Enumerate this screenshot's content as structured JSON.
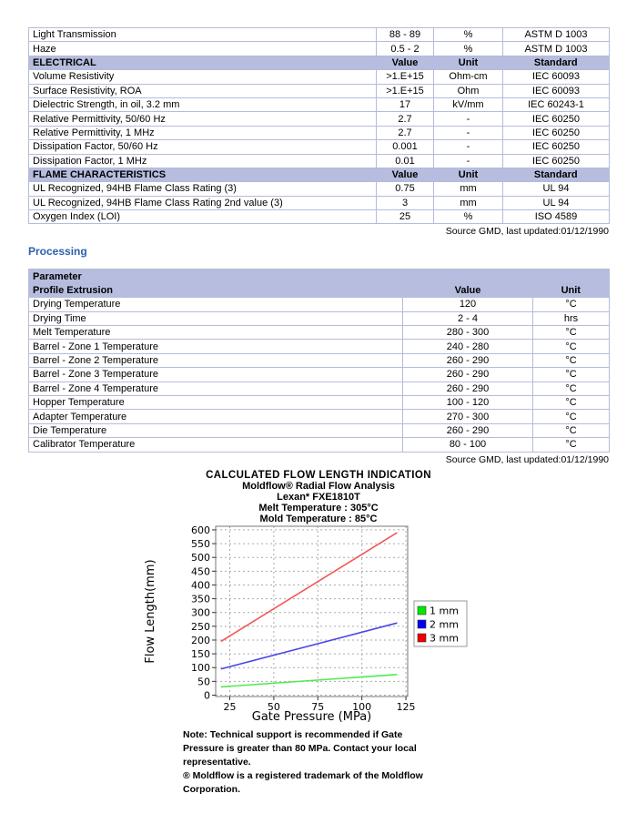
{
  "colors": {
    "table_header_bg": "#b6bdde",
    "table_border": "#b3bcdb",
    "processing_heading": "#2d5fae",
    "grid": "#aaaaaa",
    "plot_frame": "#777777"
  },
  "properties_table": {
    "rows": [
      {
        "type": "data",
        "property": "Light Transmission",
        "value": "88 - 89",
        "unit": "%",
        "standard": "ASTM D 1003"
      },
      {
        "type": "data",
        "property": "Haze",
        "value": "0.5 - 2",
        "unit": "%",
        "standard": "ASTM D 1003"
      },
      {
        "type": "section",
        "property": "ELECTRICAL",
        "value": "Value",
        "unit": "Unit",
        "standard": "Standard"
      },
      {
        "type": "data",
        "property": "Volume Resistivity",
        "value": ">1.E+15",
        "unit": "Ohm-cm",
        "standard": "IEC 60093"
      },
      {
        "type": "data",
        "property": "Surface Resistivity, ROA",
        "value": ">1.E+15",
        "unit": "Ohm",
        "standard": "IEC 60093"
      },
      {
        "type": "data",
        "property": "Dielectric Strength, in oil, 3.2 mm",
        "value": "17",
        "unit": "kV/mm",
        "standard": "IEC 60243-1"
      },
      {
        "type": "data",
        "property": "Relative Permittivity, 50/60 Hz",
        "value": "2.7",
        "unit": "-",
        "standard": "IEC 60250"
      },
      {
        "type": "data",
        "property": "Relative Permittivity, 1 MHz",
        "value": "2.7",
        "unit": "-",
        "standard": "IEC 60250"
      },
      {
        "type": "data",
        "property": "Dissipation Factor, 50/60 Hz",
        "value": "0.001",
        "unit": "-",
        "standard": "IEC 60250"
      },
      {
        "type": "data",
        "property": "Dissipation Factor, 1 MHz",
        "value": "0.01",
        "unit": "-",
        "standard": "IEC 60250"
      },
      {
        "type": "section",
        "property": "FLAME CHARACTERISTICS",
        "value": "Value",
        "unit": "Unit",
        "standard": "Standard"
      },
      {
        "type": "data",
        "property": "UL Recognized, 94HB Flame Class Rating (3)",
        "value": "0.75",
        "unit": "mm",
        "standard": "UL 94"
      },
      {
        "type": "data",
        "property": "UL Recognized, 94HB Flame Class Rating 2nd value (3)",
        "value": "3",
        "unit": "mm",
        "standard": "UL 94"
      },
      {
        "type": "data",
        "property": "Oxygen Index (LOI)",
        "value": "25",
        "unit": "%",
        "standard": "ISO 4589"
      }
    ],
    "source": "Source GMD, last updated:01/12/1990"
  },
  "processing": {
    "heading": "Processing",
    "table": {
      "group_header": "Parameter",
      "sub_header": {
        "parameter": "Profile Extrusion",
        "value": "Value",
        "unit": "Unit"
      },
      "rows": [
        {
          "parameter": "Drying Temperature",
          "value": "120",
          "unit": "°C"
        },
        {
          "parameter": "Drying Time",
          "value": "2 - 4",
          "unit": "hrs"
        },
        {
          "parameter": "Melt Temperature",
          "value": "280 - 300",
          "unit": "°C"
        },
        {
          "parameter": "Barrel - Zone 1 Temperature",
          "value": "240 - 280",
          "unit": "°C"
        },
        {
          "parameter": "Barrel - Zone 2 Temperature",
          "value": "260 - 290",
          "unit": "°C"
        },
        {
          "parameter": "Barrel - Zone 3 Temperature",
          "value": "260 - 290",
          "unit": "°C"
        },
        {
          "parameter": "Barrel - Zone 4 Temperature",
          "value": "260 - 290",
          "unit": "°C"
        },
        {
          "parameter": "Hopper Temperature",
          "value": "100 - 120",
          "unit": "°C"
        },
        {
          "parameter": "Adapter Temperature",
          "value": "270 - 300",
          "unit": "°C"
        },
        {
          "parameter": "Die Temperature",
          "value": "260 - 290",
          "unit": "°C"
        },
        {
          "parameter": "Calibrator Temperature",
          "value": "80 - 100",
          "unit": "°C"
        }
      ],
      "source": "Source GMD, last updated:01/12/1990"
    }
  },
  "chart_data": {
    "type": "line",
    "title": "CALCULATED FLOW LENGTH INDICATION",
    "subtitles": [
      "Moldflow® Radial Flow Analysis",
      "Lexan* FXE1810T",
      "Melt Temperature : 305°C",
      "Mold Temperature : 85°C"
    ],
    "xlabel": "Gate Pressure (MPa)",
    "ylabel": "Flow Length(mm)",
    "xlim": [
      17,
      126
    ],
    "ylim": [
      -5,
      613
    ],
    "x_ticks": [
      25,
      50,
      75,
      100,
      125
    ],
    "y_ticks": [
      0,
      50,
      100,
      150,
      200,
      250,
      300,
      350,
      400,
      450,
      500,
      550,
      600
    ],
    "grid": "dashed",
    "legend_position": "right",
    "series": [
      {
        "name": "1 mm",
        "line_color": "#4dec4d",
        "legend_color": "#00e800",
        "x": [
          20,
          120
        ],
        "y": [
          30,
          75
        ]
      },
      {
        "name": "2 mm",
        "line_color": "#4646e8",
        "legend_color": "#0000ee",
        "x": [
          20,
          120
        ],
        "y": [
          95,
          262
        ]
      },
      {
        "name": "3 mm",
        "line_color": "#f65555",
        "legend_color": "#ee0000",
        "x": [
          20,
          120
        ],
        "y": [
          195,
          590
        ]
      }
    ],
    "note_lines": [
      "Note:  Technical support is recommended if Gate",
      "Pressure is greater than 80 MPa. Contact your local",
      "representative.",
      "® Moldflow is a registered trademark of the Moldflow",
      "Corporation."
    ]
  }
}
